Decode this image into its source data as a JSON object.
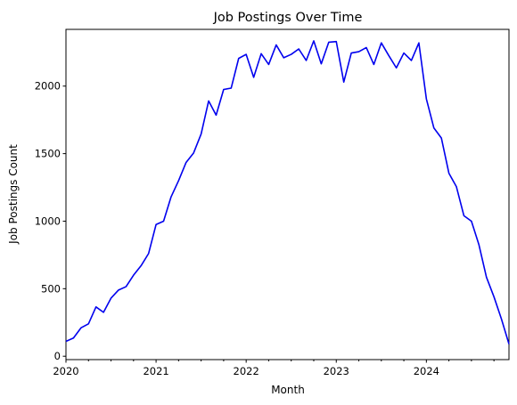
{
  "chart_data": {
    "type": "line",
    "title": "Job Postings Over Time",
    "xlabel": "Month",
    "ylabel": "Job Postings Count",
    "x_start": "2020-01",
    "x_end": "2024-12",
    "x_major_ticks": [
      {
        "label": "2020",
        "month_index": 0
      },
      {
        "label": "2021",
        "month_index": 12
      },
      {
        "label": "2022",
        "month_index": 24
      },
      {
        "label": "2023",
        "month_index": 36
      },
      {
        "label": "2024",
        "month_index": 48
      }
    ],
    "y_ticks": [
      0,
      500,
      1000,
      1500,
      2000
    ],
    "ylim": [
      -25,
      2420
    ],
    "grid": false,
    "legend": "none",
    "series": [
      {
        "color": "#0000ee",
        "values": [
          110,
          135,
          210,
          240,
          365,
          325,
          430,
          490,
          515,
          600,
          670,
          760,
          975,
          1000,
          1180,
          1300,
          1435,
          1505,
          1645,
          1890,
          1785,
          1975,
          1985,
          2205,
          2235,
          2065,
          2240,
          2160,
          2305,
          2210,
          2235,
          2275,
          2190,
          2335,
          2165,
          2325,
          2330,
          2030,
          2245,
          2255,
          2285,
          2160,
          2320,
          2225,
          2135,
          2245,
          2190,
          2320,
          1905,
          1690,
          1615,
          1355,
          1255,
          1040,
          1000,
          825,
          585,
          440,
          275,
          90
        ]
      }
    ]
  }
}
